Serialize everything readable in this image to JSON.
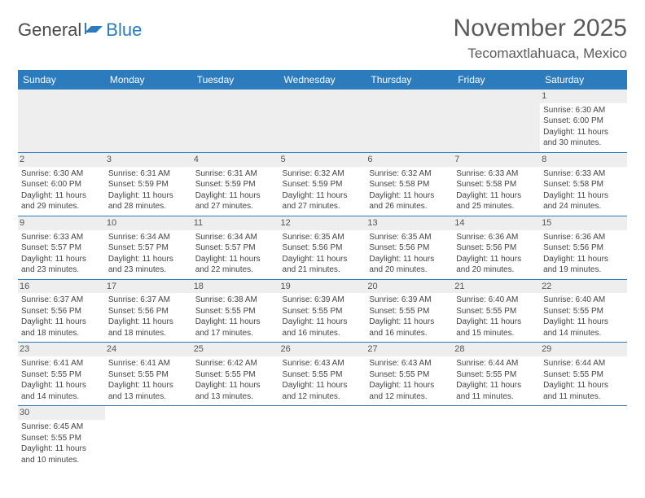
{
  "logo": {
    "word1": "General",
    "word2": "Blue"
  },
  "title": "November 2025",
  "location": "Tecomaxtlahuaca, Mexico",
  "colors": {
    "header_bg": "#2b7bbd",
    "header_text": "#ffffff",
    "daynum_bg": "#eeeeee",
    "border": "#2b7bbd",
    "text": "#444444"
  },
  "fonts": {
    "title_size": 30,
    "location_size": 17,
    "dayheader_size": 12,
    "daynum_size": 11,
    "body_size": 10
  },
  "day_headers": [
    "Sunday",
    "Monday",
    "Tuesday",
    "Wednesday",
    "Thursday",
    "Friday",
    "Saturday"
  ],
  "weeks": [
    [
      null,
      null,
      null,
      null,
      null,
      null,
      {
        "n": "1",
        "sr": "Sunrise: 6:30 AM",
        "ss": "Sunset: 6:00 PM",
        "d1": "Daylight: 11 hours",
        "d2": "and 30 minutes."
      }
    ],
    [
      {
        "n": "2",
        "sr": "Sunrise: 6:30 AM",
        "ss": "Sunset: 6:00 PM",
        "d1": "Daylight: 11 hours",
        "d2": "and 29 minutes."
      },
      {
        "n": "3",
        "sr": "Sunrise: 6:31 AM",
        "ss": "Sunset: 5:59 PM",
        "d1": "Daylight: 11 hours",
        "d2": "and 28 minutes."
      },
      {
        "n": "4",
        "sr": "Sunrise: 6:31 AM",
        "ss": "Sunset: 5:59 PM",
        "d1": "Daylight: 11 hours",
        "d2": "and 27 minutes."
      },
      {
        "n": "5",
        "sr": "Sunrise: 6:32 AM",
        "ss": "Sunset: 5:59 PM",
        "d1": "Daylight: 11 hours",
        "d2": "and 27 minutes."
      },
      {
        "n": "6",
        "sr": "Sunrise: 6:32 AM",
        "ss": "Sunset: 5:58 PM",
        "d1": "Daylight: 11 hours",
        "d2": "and 26 minutes."
      },
      {
        "n": "7",
        "sr": "Sunrise: 6:33 AM",
        "ss": "Sunset: 5:58 PM",
        "d1": "Daylight: 11 hours",
        "d2": "and 25 minutes."
      },
      {
        "n": "8",
        "sr": "Sunrise: 6:33 AM",
        "ss": "Sunset: 5:58 PM",
        "d1": "Daylight: 11 hours",
        "d2": "and 24 minutes."
      }
    ],
    [
      {
        "n": "9",
        "sr": "Sunrise: 6:33 AM",
        "ss": "Sunset: 5:57 PM",
        "d1": "Daylight: 11 hours",
        "d2": "and 23 minutes."
      },
      {
        "n": "10",
        "sr": "Sunrise: 6:34 AM",
        "ss": "Sunset: 5:57 PM",
        "d1": "Daylight: 11 hours",
        "d2": "and 23 minutes."
      },
      {
        "n": "11",
        "sr": "Sunrise: 6:34 AM",
        "ss": "Sunset: 5:57 PM",
        "d1": "Daylight: 11 hours",
        "d2": "and 22 minutes."
      },
      {
        "n": "12",
        "sr": "Sunrise: 6:35 AM",
        "ss": "Sunset: 5:56 PM",
        "d1": "Daylight: 11 hours",
        "d2": "and 21 minutes."
      },
      {
        "n": "13",
        "sr": "Sunrise: 6:35 AM",
        "ss": "Sunset: 5:56 PM",
        "d1": "Daylight: 11 hours",
        "d2": "and 20 minutes."
      },
      {
        "n": "14",
        "sr": "Sunrise: 6:36 AM",
        "ss": "Sunset: 5:56 PM",
        "d1": "Daylight: 11 hours",
        "d2": "and 20 minutes."
      },
      {
        "n": "15",
        "sr": "Sunrise: 6:36 AM",
        "ss": "Sunset: 5:56 PM",
        "d1": "Daylight: 11 hours",
        "d2": "and 19 minutes."
      }
    ],
    [
      {
        "n": "16",
        "sr": "Sunrise: 6:37 AM",
        "ss": "Sunset: 5:56 PM",
        "d1": "Daylight: 11 hours",
        "d2": "and 18 minutes."
      },
      {
        "n": "17",
        "sr": "Sunrise: 6:37 AM",
        "ss": "Sunset: 5:56 PM",
        "d1": "Daylight: 11 hours",
        "d2": "and 18 minutes."
      },
      {
        "n": "18",
        "sr": "Sunrise: 6:38 AM",
        "ss": "Sunset: 5:55 PM",
        "d1": "Daylight: 11 hours",
        "d2": "and 17 minutes."
      },
      {
        "n": "19",
        "sr": "Sunrise: 6:39 AM",
        "ss": "Sunset: 5:55 PM",
        "d1": "Daylight: 11 hours",
        "d2": "and 16 minutes."
      },
      {
        "n": "20",
        "sr": "Sunrise: 6:39 AM",
        "ss": "Sunset: 5:55 PM",
        "d1": "Daylight: 11 hours",
        "d2": "and 16 minutes."
      },
      {
        "n": "21",
        "sr": "Sunrise: 6:40 AM",
        "ss": "Sunset: 5:55 PM",
        "d1": "Daylight: 11 hours",
        "d2": "and 15 minutes."
      },
      {
        "n": "22",
        "sr": "Sunrise: 6:40 AM",
        "ss": "Sunset: 5:55 PM",
        "d1": "Daylight: 11 hours",
        "d2": "and 14 minutes."
      }
    ],
    [
      {
        "n": "23",
        "sr": "Sunrise: 6:41 AM",
        "ss": "Sunset: 5:55 PM",
        "d1": "Daylight: 11 hours",
        "d2": "and 14 minutes."
      },
      {
        "n": "24",
        "sr": "Sunrise: 6:41 AM",
        "ss": "Sunset: 5:55 PM",
        "d1": "Daylight: 11 hours",
        "d2": "and 13 minutes."
      },
      {
        "n": "25",
        "sr": "Sunrise: 6:42 AM",
        "ss": "Sunset: 5:55 PM",
        "d1": "Daylight: 11 hours",
        "d2": "and 13 minutes."
      },
      {
        "n": "26",
        "sr": "Sunrise: 6:43 AM",
        "ss": "Sunset: 5:55 PM",
        "d1": "Daylight: 11 hours",
        "d2": "and 12 minutes."
      },
      {
        "n": "27",
        "sr": "Sunrise: 6:43 AM",
        "ss": "Sunset: 5:55 PM",
        "d1": "Daylight: 11 hours",
        "d2": "and 12 minutes."
      },
      {
        "n": "28",
        "sr": "Sunrise: 6:44 AM",
        "ss": "Sunset: 5:55 PM",
        "d1": "Daylight: 11 hours",
        "d2": "and 11 minutes."
      },
      {
        "n": "29",
        "sr": "Sunrise: 6:44 AM",
        "ss": "Sunset: 5:55 PM",
        "d1": "Daylight: 11 hours",
        "d2": "and 11 minutes."
      }
    ],
    [
      {
        "n": "30",
        "sr": "Sunrise: 6:45 AM",
        "ss": "Sunset: 5:55 PM",
        "d1": "Daylight: 11 hours",
        "d2": "and 10 minutes."
      },
      null,
      null,
      null,
      null,
      null,
      null
    ]
  ]
}
